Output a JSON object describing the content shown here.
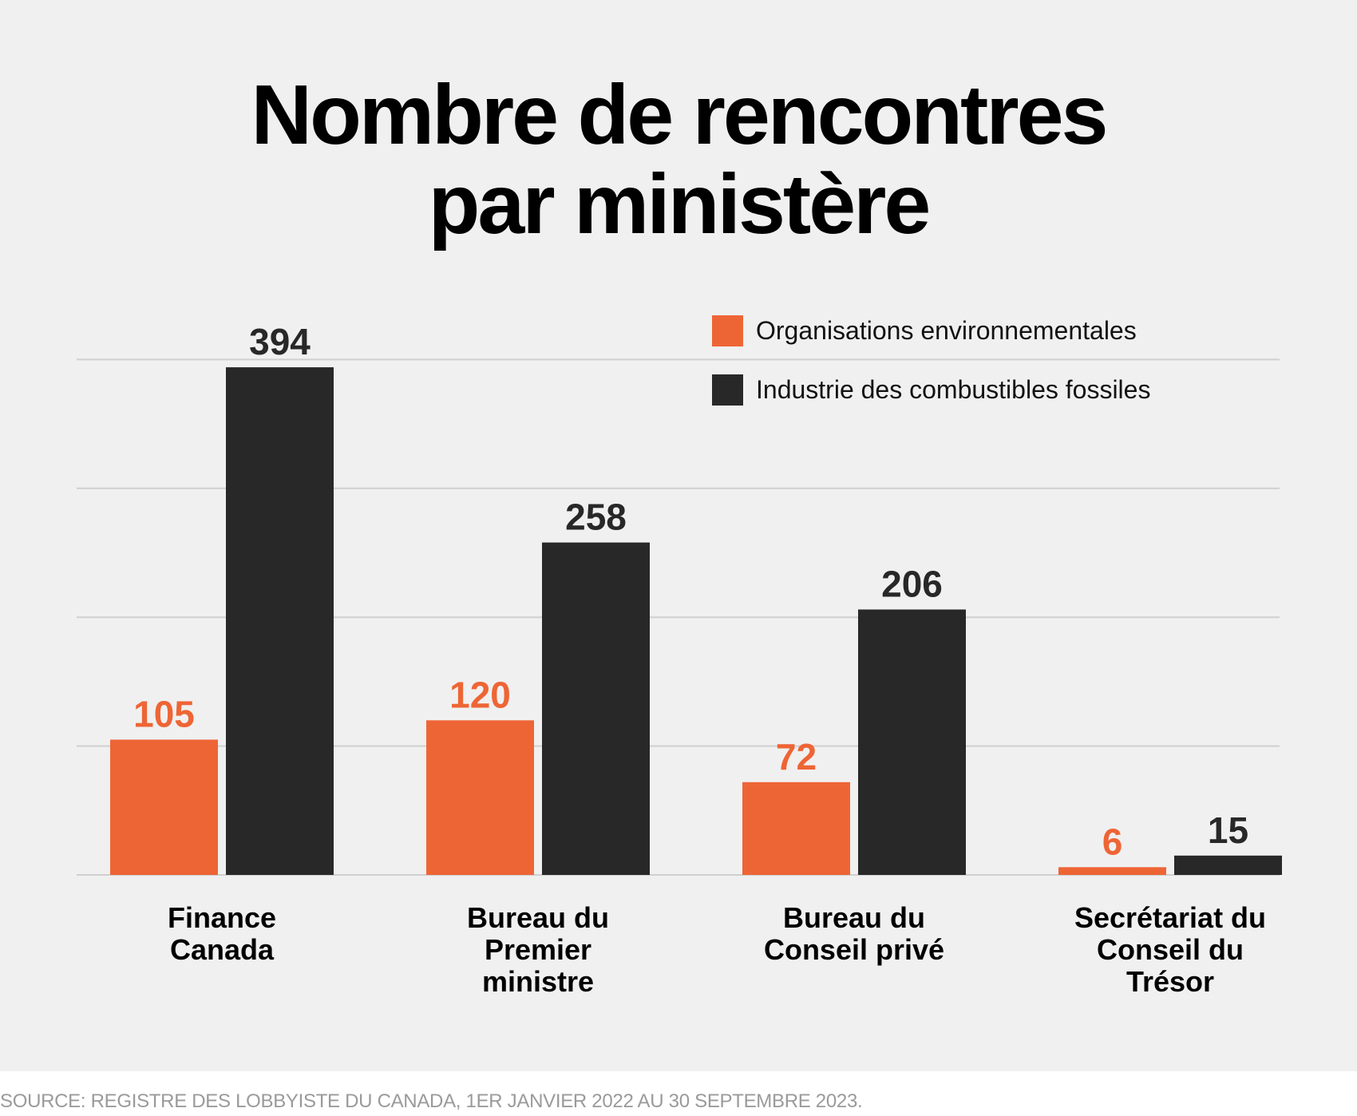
{
  "chart_data": {
    "type": "bar",
    "title": "Nombre de rencontres par ministère",
    "title_lines": [
      "Nombre de rencontres",
      "par ministère"
    ],
    "categories": [
      "Finance\nCanada",
      "Bureau du\nPremier\nministre",
      "Bureau du\nConseil privé",
      "Secrétariat du\nConseil du\nTrésor"
    ],
    "series": [
      {
        "name": "Organisations environnementales",
        "color": "#ee6535",
        "values": [
          105,
          120,
          72,
          6
        ]
      },
      {
        "name": "Industrie des combustibles fossiles",
        "color": "#282828",
        "values": [
          394,
          258,
          206,
          15
        ]
      }
    ],
    "ylim": [
      0,
      400
    ],
    "gridlines": [
      0,
      100,
      200,
      300,
      400
    ],
    "grid": true,
    "y_axis_labels_shown": false,
    "legend_position": "top-right",
    "source": "SOURCE: REGISTRE DES LOBBYISTE DU CANADA, 1ER JANVIER 2022 AU 30 SEPTEMBRE 2023."
  }
}
